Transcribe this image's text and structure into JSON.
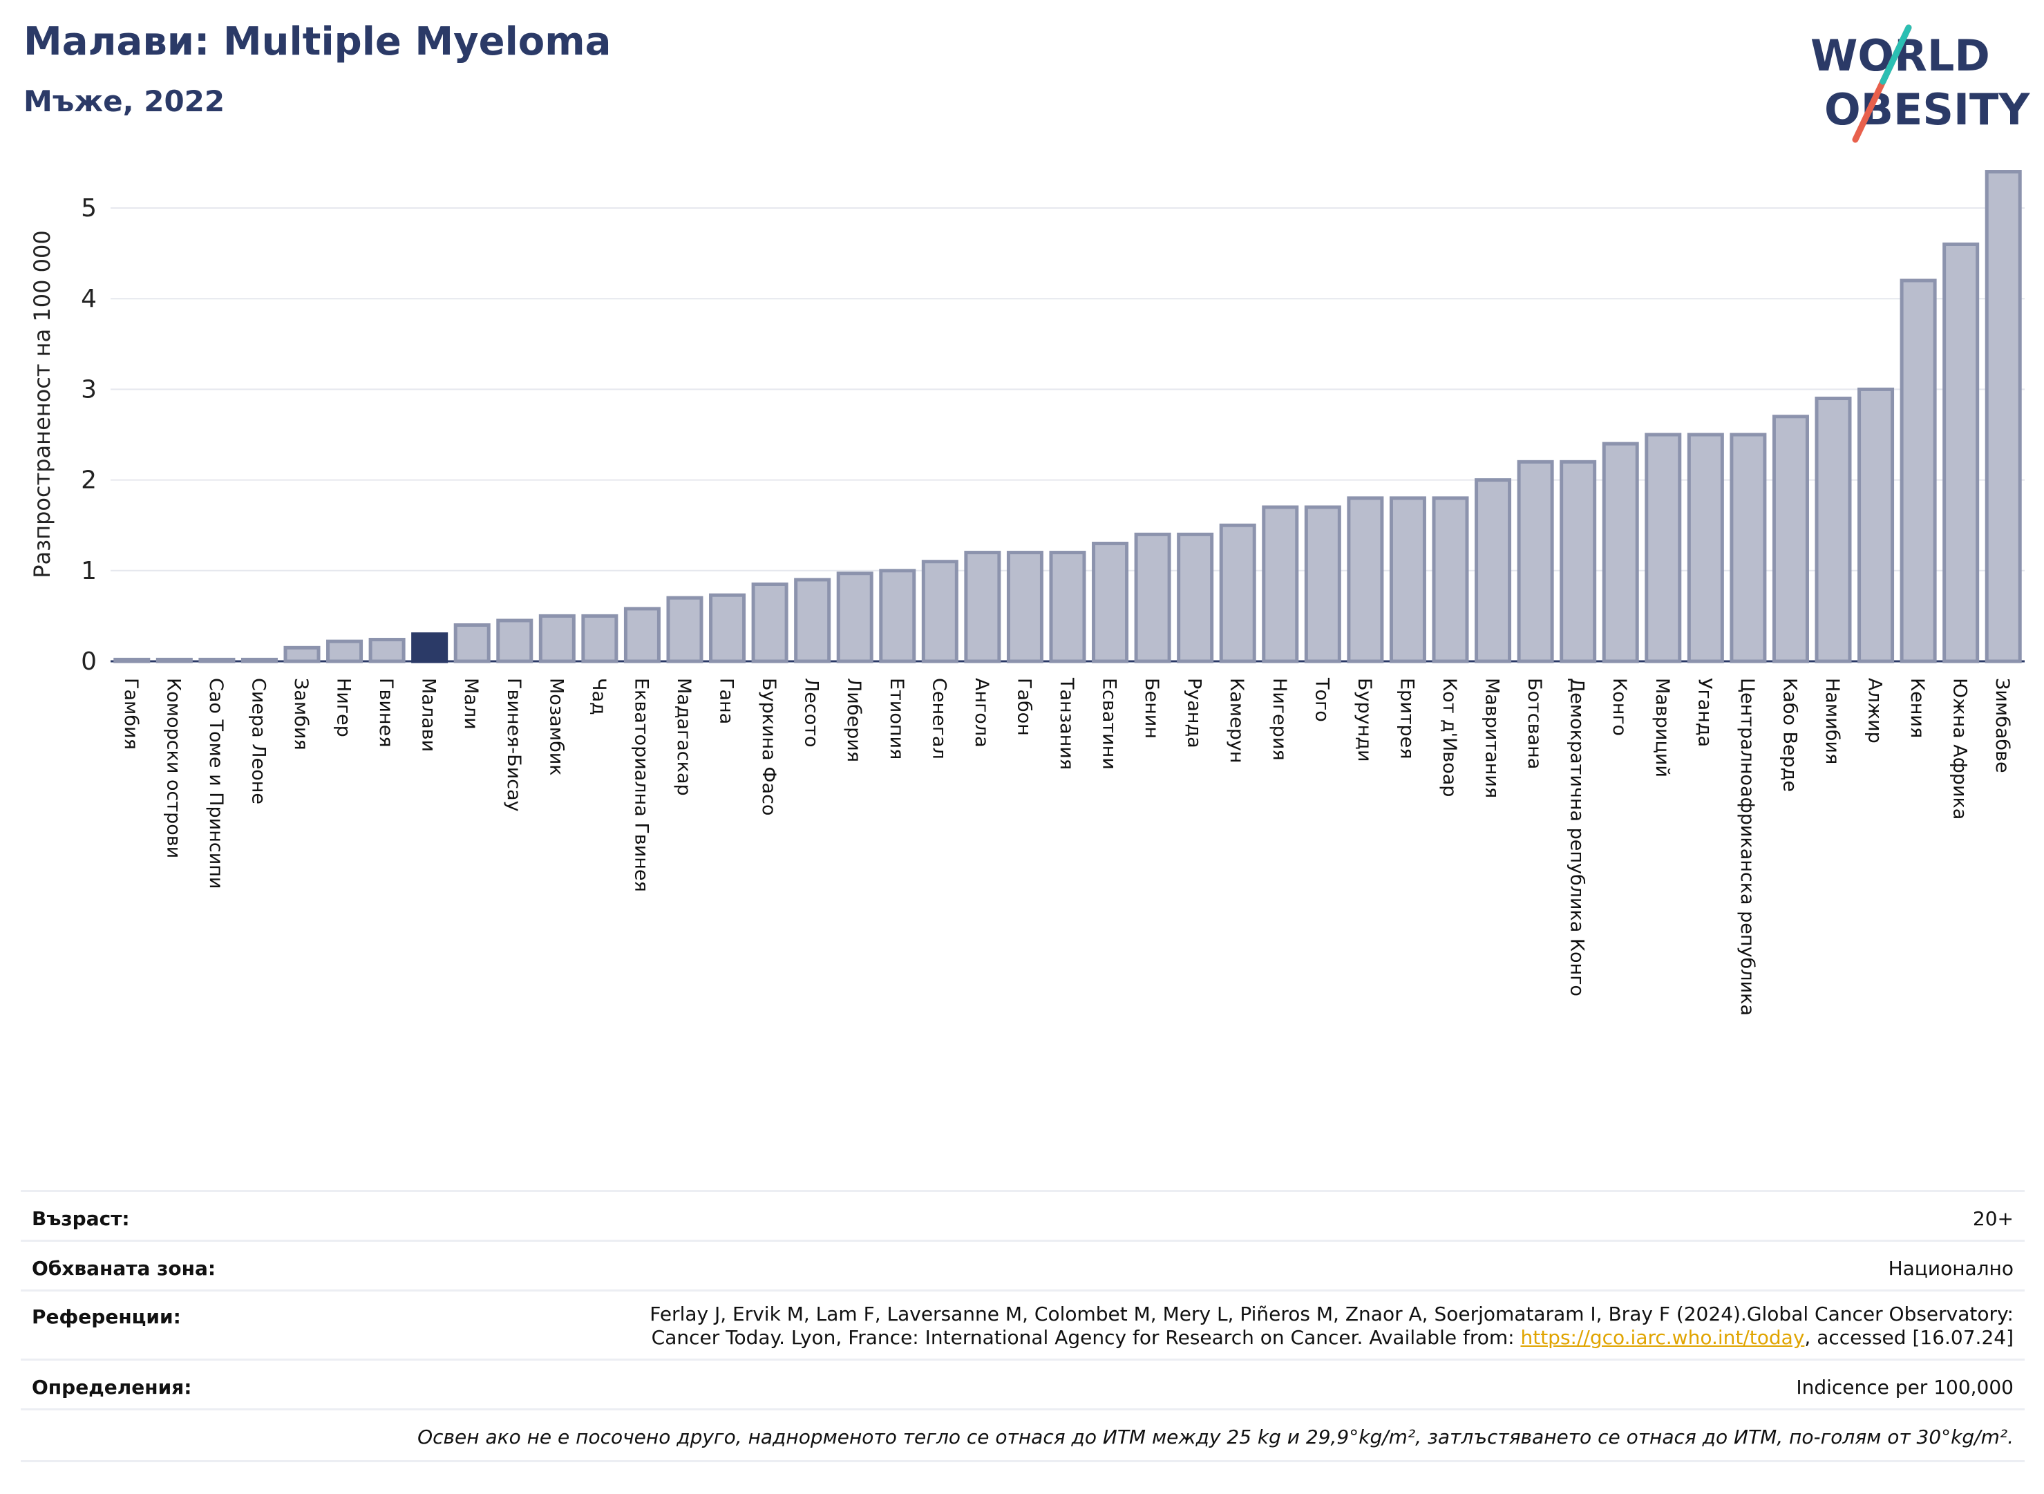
{
  "header": {
    "title": "Малави: Multiple Myeloma",
    "subtitle": "Мъже, 2022"
  },
  "logo": {
    "line1": "WORLD",
    "line2": "OBESITY"
  },
  "chart_data": {
    "type": "bar",
    "ylabel": "Разпространеност  на 100 000",
    "ylim": [
      0,
      5.5
    ],
    "yticks": [
      0,
      1,
      2,
      3,
      4,
      5
    ],
    "highlight": "Малави",
    "colors": {
      "bar": "#b9bdcd",
      "bar_edge": "#8c93ad",
      "highlight": "#2b3a67"
    },
    "categories": [
      "Гамбия",
      "Коморски острови",
      "Сао Томе и Принсипи",
      "Сиера Леоне",
      "Замбия",
      "Нигер",
      "Гвинея",
      "Малави",
      "Мали",
      "Гвинея-Бисау",
      "Мозамбик",
      "Чад",
      "Екваториална Гвинея",
      "Мадагаскар",
      "Гана",
      "Буркина Фасо",
      "Лесото",
      "Либерия",
      "Етиопия",
      "Сенегал",
      "Ангола",
      "Габон",
      "Танзания",
      "Есватини",
      "Бенин",
      "Руанда",
      "Камерун",
      "Нигерия",
      "Того",
      "Бурунди",
      "Еритрея",
      "Кот д'Ивоар",
      "Мавритания",
      "Ботсвана",
      "Демократична република Конго",
      "Конго",
      "Мавриций",
      "Уганда",
      "Централноафриканска република",
      "Кабо Верде",
      "Намибия",
      "Алжир",
      "Кения",
      "Южна Африка",
      "Зимбабве"
    ],
    "values": [
      0.02,
      0.02,
      0.02,
      0.02,
      0.15,
      0.22,
      0.24,
      0.3,
      0.4,
      0.45,
      0.5,
      0.5,
      0.58,
      0.7,
      0.73,
      0.85,
      0.9,
      0.97,
      1.0,
      1.1,
      1.2,
      1.2,
      1.2,
      1.3,
      1.4,
      1.4,
      1.5,
      1.7,
      1.7,
      1.8,
      1.8,
      1.8,
      2.0,
      2.2,
      2.2,
      2.4,
      2.5,
      2.5,
      2.5,
      2.7,
      2.9,
      3.0,
      4.2,
      4.6,
      5.4
    ]
  },
  "info": {
    "age_label": "Възраст:",
    "age_value": "20+",
    "area_label": "Обхваната зона:",
    "area_value": "Национално",
    "ref_label": "Референции:",
    "ref_text_1": "Ferlay J, Ervik M, Lam F, Laversanne M, Colombet M, Mery L, Piñeros M, Znaor A, Soerjomataram I, Bray F (2024).Global Cancer Observatory:",
    "ref_text_2": "Cancer Today. Lyon, France: International Agency for Research on Cancer. Available from: ",
    "ref_link": "https://gco.iarc.who.int/today",
    "ref_text_3": ", accessed [16.07.24]",
    "def_label": "Определения:",
    "def_value": "Indicence per 100,000",
    "note": "Освен ако не е посочено друго, наднорменото тегло се отнася до ИТМ между 25 kg и 29,9°kg/m², затлъстяването се отнася до ИТМ, по-голям от 30°kg/m²."
  }
}
